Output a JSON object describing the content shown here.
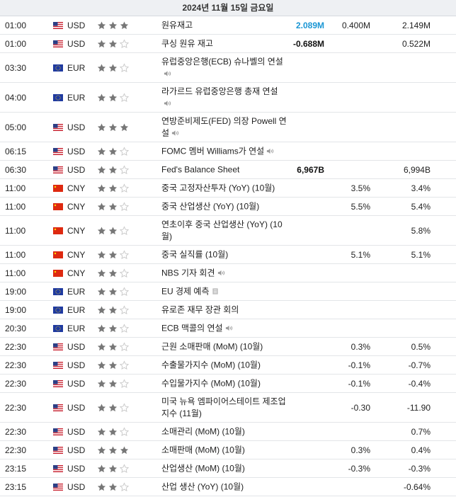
{
  "header": {
    "date": "2024년 11월 15일 금요일"
  },
  "colors": {
    "actual_positive": "#1a96d4",
    "star_on": "#777777",
    "star_off": "#c8c8c8"
  },
  "rows": [
    {
      "time": "01:00",
      "flag": "us",
      "currency": "USD",
      "importance": 3,
      "event": "원유재고",
      "icon": "",
      "actual": "2.089M",
      "actual_tone": "pos",
      "forecast": "0.400M",
      "previous": "2.149M",
      "h": 26
    },
    {
      "time": "01:00",
      "flag": "us",
      "currency": "USD",
      "importance": 2,
      "event": "쿠싱 원유 재고",
      "icon": "",
      "actual": "-0.688M",
      "actual_tone": "neg",
      "forecast": "",
      "previous": "0.522M",
      "h": 26
    },
    {
      "time": "03:30",
      "flag": "eu",
      "currency": "EUR",
      "importance": 2,
      "event": "유럽중앙은행(ECB) 슈나벨의 연설",
      "icon": "speaker",
      "actual": "",
      "actual_tone": "",
      "forecast": "",
      "previous": "",
      "h": 42
    },
    {
      "time": "04:00",
      "flag": "eu",
      "currency": "EUR",
      "importance": 2,
      "event": "라가르드 유럽중앙은행 총재 연설",
      "icon": "speaker",
      "actual": "",
      "actual_tone": "",
      "forecast": "",
      "previous": "",
      "h": 42
    },
    {
      "time": "05:00",
      "flag": "us",
      "currency": "USD",
      "importance": 3,
      "event": "연방준비제도(FED) 의장 Powell 연설",
      "icon": "speaker",
      "actual": "",
      "actual_tone": "",
      "forecast": "",
      "previous": "",
      "h": 42
    },
    {
      "time": "06:15",
      "flag": "us",
      "currency": "USD",
      "importance": 2,
      "event": "FOMC 멤버 Williams가 연설",
      "icon": "speaker",
      "actual": "",
      "actual_tone": "",
      "forecast": "",
      "previous": "",
      "h": 26
    },
    {
      "time": "06:30",
      "flag": "us",
      "currency": "USD",
      "importance": 2,
      "event": "Fed's Balance Sheet",
      "icon": "",
      "actual": "6,967B",
      "actual_tone": "neu",
      "forecast": "",
      "previous": "6,994B",
      "h": 26
    },
    {
      "time": "11:00",
      "flag": "cn",
      "currency": "CNY",
      "importance": 2,
      "event": "중국 고정자산투자 (YoY) (10월)",
      "icon": "",
      "actual": "",
      "actual_tone": "",
      "forecast": "3.5%",
      "previous": "3.4%",
      "h": 26
    },
    {
      "time": "11:00",
      "flag": "cn",
      "currency": "CNY",
      "importance": 2,
      "event": "중국 산업생산 (YoY) (10월)",
      "icon": "",
      "actual": "",
      "actual_tone": "",
      "forecast": "5.5%",
      "previous": "5.4%",
      "h": 26
    },
    {
      "time": "11:00",
      "flag": "cn",
      "currency": "CNY",
      "importance": 2,
      "event": "연초이후 중국 산업생산 (YoY) (10월)",
      "icon": "",
      "actual": "",
      "actual_tone": "",
      "forecast": "",
      "previous": "5.8%",
      "h": 42
    },
    {
      "time": "11:00",
      "flag": "cn",
      "currency": "CNY",
      "importance": 2,
      "event": "중국 실직률 (10월)",
      "icon": "",
      "actual": "",
      "actual_tone": "",
      "forecast": "5.1%",
      "previous": "5.1%",
      "h": 26
    },
    {
      "time": "11:00",
      "flag": "cn",
      "currency": "CNY",
      "importance": 2,
      "event": "NBS 기자 회견",
      "icon": "speaker",
      "actual": "",
      "actual_tone": "",
      "forecast": "",
      "previous": "",
      "h": 26
    },
    {
      "time": "19:00",
      "flag": "eu",
      "currency": "EUR",
      "importance": 2,
      "event": "EU 경제 예측",
      "icon": "report",
      "actual": "",
      "actual_tone": "",
      "forecast": "",
      "previous": "",
      "h": 26
    },
    {
      "time": "19:00",
      "flag": "eu",
      "currency": "EUR",
      "importance": 2,
      "event": "유로존 재무 장관 회의",
      "icon": "",
      "actual": "",
      "actual_tone": "",
      "forecast": "",
      "previous": "",
      "h": 26
    },
    {
      "time": "20:30",
      "flag": "eu",
      "currency": "EUR",
      "importance": 2,
      "event": "ECB 맥콜의 연설",
      "icon": "speaker",
      "actual": "",
      "actual_tone": "",
      "forecast": "",
      "previous": "",
      "h": 26
    },
    {
      "time": "22:30",
      "flag": "us",
      "currency": "USD",
      "importance": 2,
      "event": "근원 소매판매 (MoM) (10월)",
      "icon": "",
      "actual": "",
      "actual_tone": "",
      "forecast": "0.3%",
      "previous": "0.5%",
      "h": 26
    },
    {
      "time": "22:30",
      "flag": "us",
      "currency": "USD",
      "importance": 2,
      "event": "수출물가지수 (MoM) (10월)",
      "icon": "",
      "actual": "",
      "actual_tone": "",
      "forecast": "-0.1%",
      "previous": "-0.7%",
      "h": 26
    },
    {
      "time": "22:30",
      "flag": "us",
      "currency": "USD",
      "importance": 2,
      "event": "수입물가지수 (MoM) (10월)",
      "icon": "",
      "actual": "",
      "actual_tone": "",
      "forecast": "-0.1%",
      "previous": "-0.4%",
      "h": 26
    },
    {
      "time": "22:30",
      "flag": "us",
      "currency": "USD",
      "importance": 2,
      "event": "미국 뉴욕 엠파이어스테이트 제조업지수 (11월)",
      "icon": "",
      "actual": "",
      "actual_tone": "",
      "forecast": "-0.30",
      "previous": "-11.90",
      "h": 42
    },
    {
      "time": "22:30",
      "flag": "us",
      "currency": "USD",
      "importance": 2,
      "event": "소매관리 (MoM) (10월)",
      "icon": "",
      "actual": "",
      "actual_tone": "",
      "forecast": "",
      "previous": "0.7%",
      "h": 26
    },
    {
      "time": "22:30",
      "flag": "us",
      "currency": "USD",
      "importance": 3,
      "event": "소매판매 (MoM) (10월)",
      "icon": "",
      "actual": "",
      "actual_tone": "",
      "forecast": "0.3%",
      "previous": "0.4%",
      "h": 26
    },
    {
      "time": "23:15",
      "flag": "us",
      "currency": "USD",
      "importance": 2,
      "event": "산업생산 (MoM) (10월)",
      "icon": "",
      "actual": "",
      "actual_tone": "",
      "forecast": "-0.3%",
      "previous": "-0.3%",
      "h": 26
    },
    {
      "time": "23:15",
      "flag": "us",
      "currency": "USD",
      "importance": 2,
      "event": "산업 생산 (YoY) (10월)",
      "icon": "",
      "actual": "",
      "actual_tone": "",
      "forecast": "",
      "previous": "-0.64%",
      "h": 26
    }
  ]
}
